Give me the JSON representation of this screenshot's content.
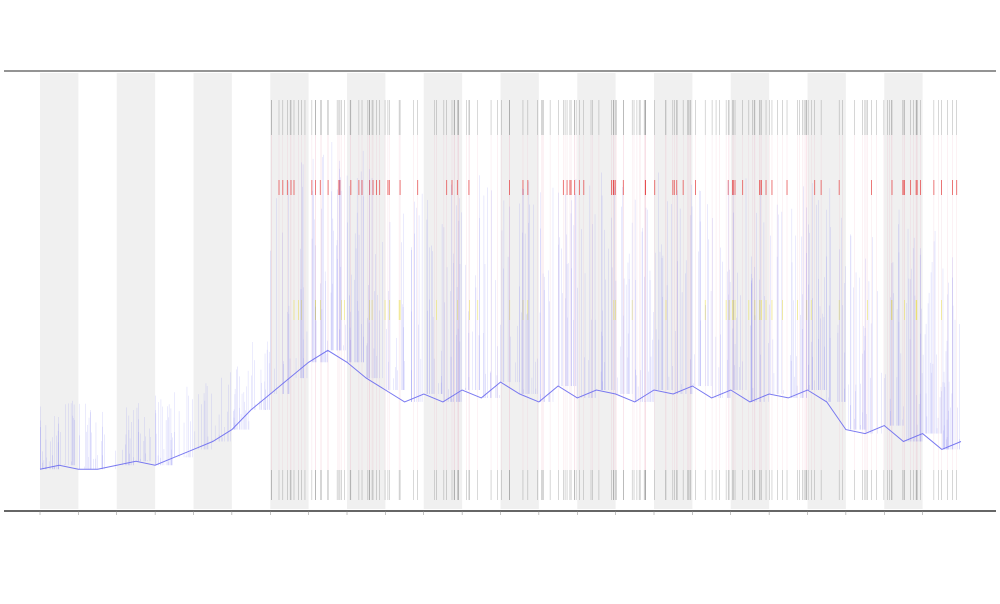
{
  "chart_data": {
    "type": "line",
    "title": "",
    "xlabel": "",
    "ylabel": "",
    "grid": false,
    "legend": "none",
    "n_days": 24,
    "baseline_label": "",
    "colors": {
      "band": "#f0f0f0",
      "series": "#6c6cf0",
      "event": "#555555",
      "spike_red": "#e43c3c",
      "spike_yellow": "#e8e048",
      "frame": "#555555"
    },
    "x_ticks": [
      "",
      "",
      "",
      "",
      "",
      "",
      "",
      "",
      "",
      "",
      "",
      "",
      "",
      "",
      "",
      "",
      "",
      "",
      "",
      "",
      "",
      "",
      "",
      ""
    ],
    "x": [
      0,
      0.5,
      1,
      1.5,
      2,
      2.5,
      3,
      3.5,
      4,
      4.5,
      5,
      5.5,
      6,
      6.5,
      7,
      7.5,
      8,
      8.5,
      9,
      9.5,
      10,
      10.5,
      11,
      11.5,
      12,
      12.5,
      13,
      13.5,
      14,
      14.5,
      15,
      15.5,
      16,
      16.5,
      17,
      17.5,
      18,
      18.5,
      19,
      19.5,
      20,
      20.5,
      21,
      21.5,
      22,
      22.5,
      23,
      23.5,
      24
    ],
    "series": [
      {
        "values": [
          0.05,
          0.06,
          0.05,
          0.05,
          0.06,
          0.07,
          0.06,
          0.08,
          0.1,
          0.12,
          0.15,
          0.2,
          0.24,
          0.28,
          0.32,
          0.35,
          0.32,
          0.28,
          0.25,
          0.22,
          0.24,
          0.22,
          0.25,
          0.23,
          0.27,
          0.24,
          0.22,
          0.26,
          0.23,
          0.25,
          0.24,
          0.22,
          0.25,
          0.24,
          0.26,
          0.23,
          0.25,
          0.22,
          0.24,
          0.23,
          0.25,
          0.22,
          0.15,
          0.14,
          0.16,
          0.12,
          0.14,
          0.1,
          0.12
        ]
      }
    ]
  }
}
